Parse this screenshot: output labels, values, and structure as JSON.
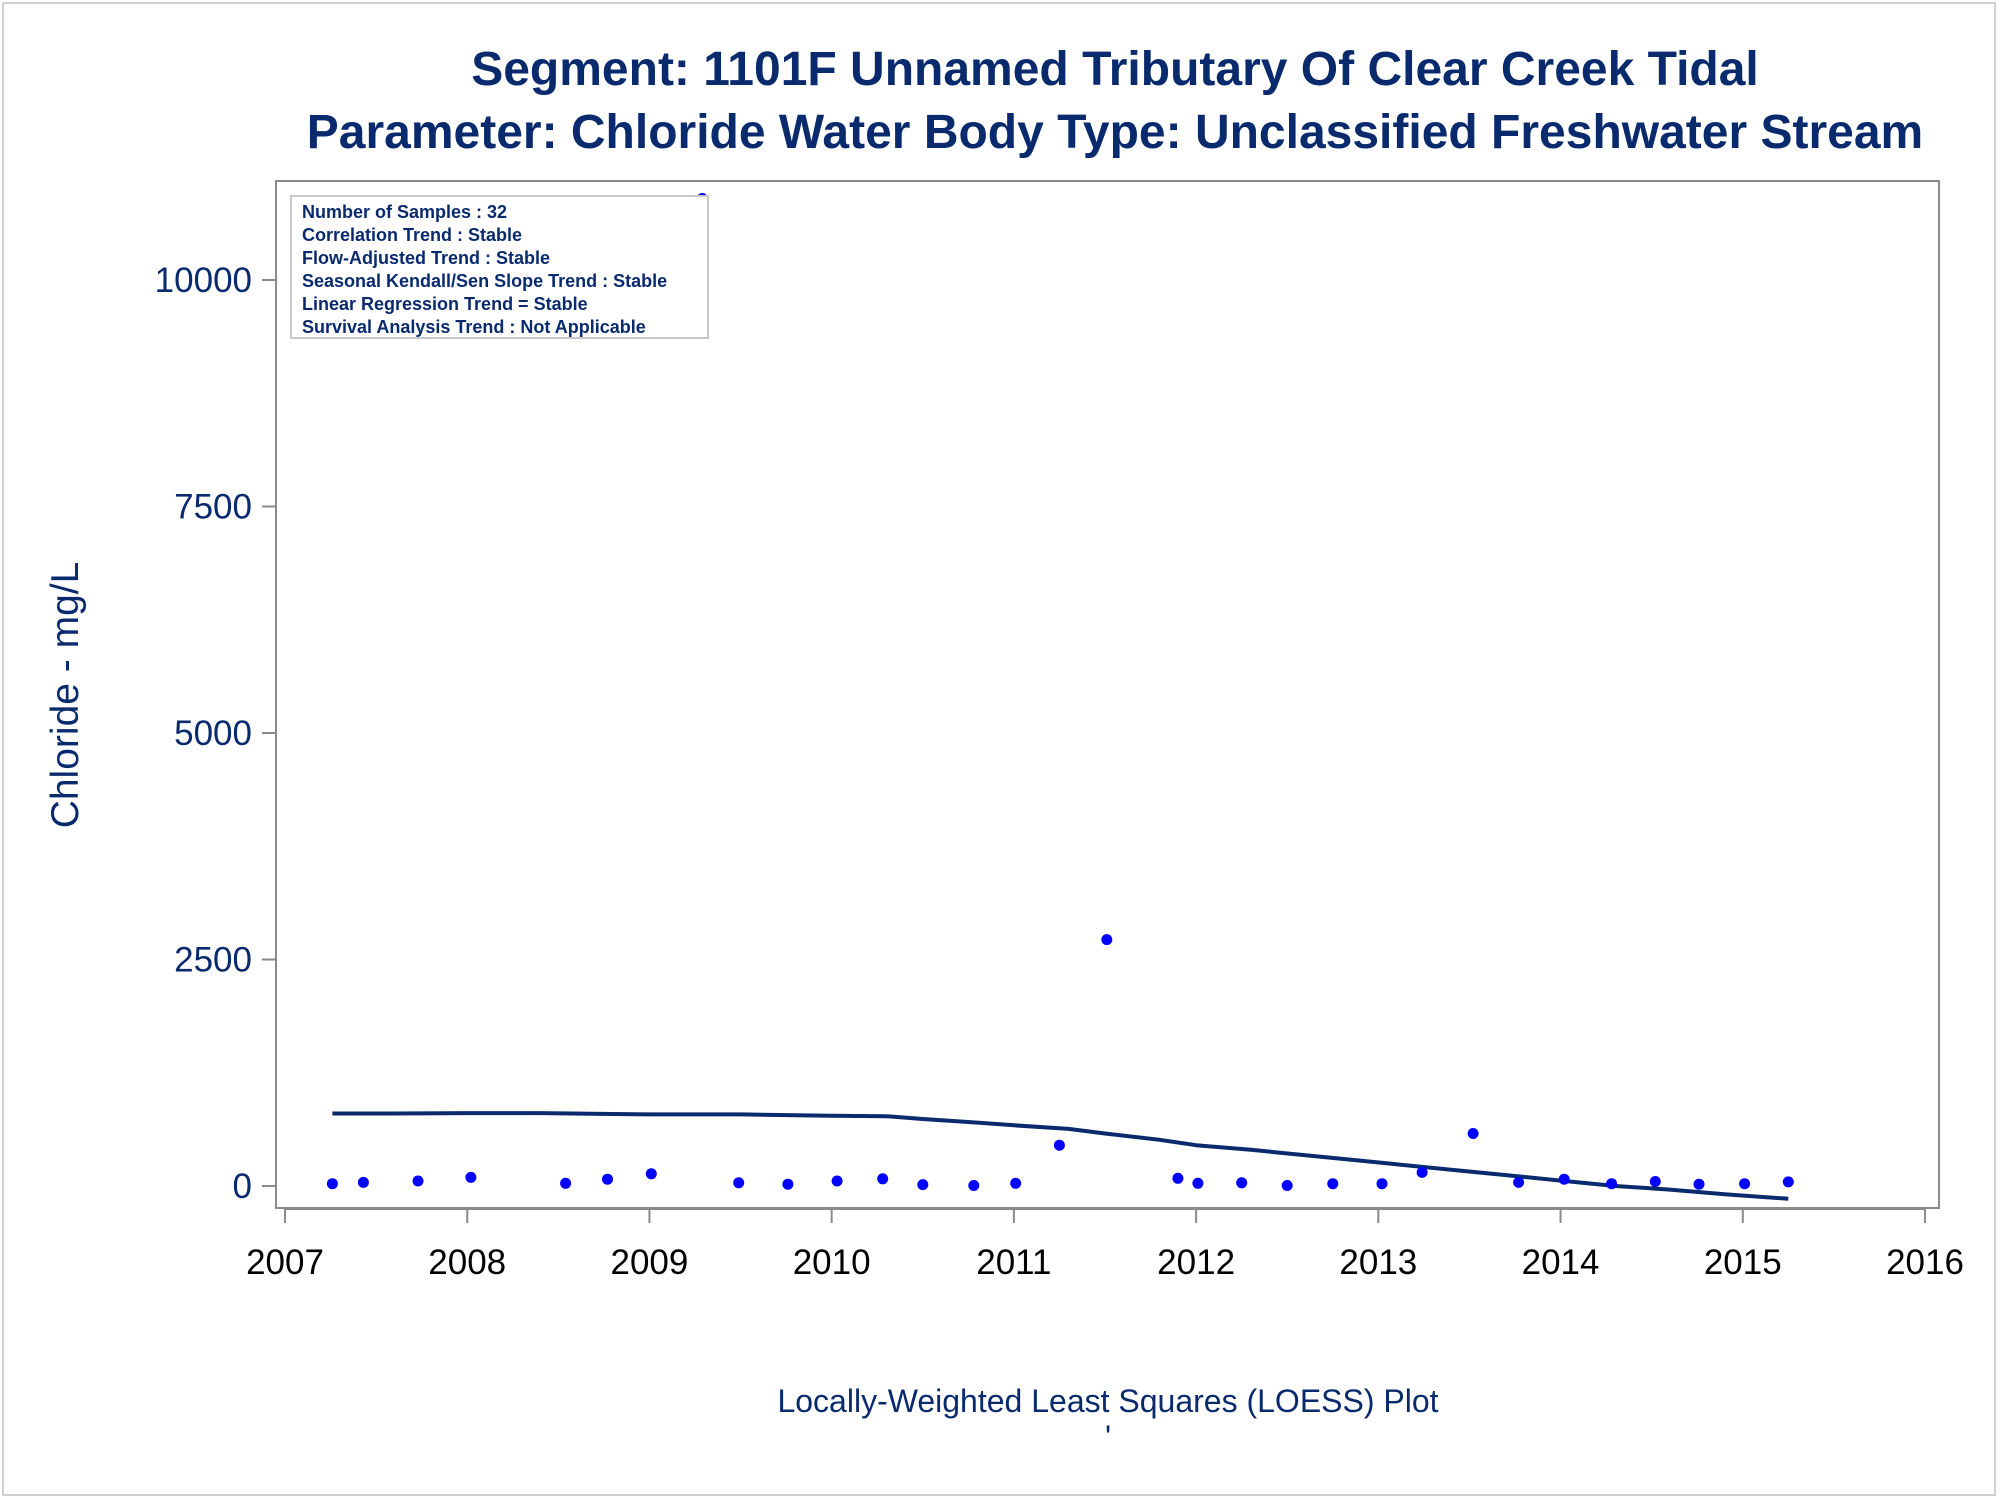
{
  "chart_data": {
    "type": "scatter",
    "title": "Segment: 1101F  Unnamed Tributary Of Clear Creek Tidal",
    "subtitle": "Parameter: Chloride   Water Body Type: Unclassified Freshwater Stream",
    "xlabel": "",
    "ylabel": "Chloride - mg/L",
    "footnote": "Locally-Weighted Least Squares (LOESS) Plot",
    "footnote_mark": "'",
    "xlim": [
      2007,
      2016
    ],
    "ylim": [
      -250,
      11100
    ],
    "x_ticks": [
      2007,
      2008,
      2009,
      2010,
      2011,
      2012,
      2013,
      2014,
      2015,
      2016
    ],
    "y_ticks": [
      0,
      2500,
      5000,
      7500,
      10000
    ],
    "grid": false,
    "legend_position": "top-left",
    "stats_box": [
      "Number of Samples : 32",
      "Correlation Trend : Stable",
      "Flow-Adjusted Trend : Stable",
      "Seasonal Kendall/Sen Slope Trend : Stable",
      "Linear Regression Trend = Stable",
      "Survival Analysis Trend : Not Applicable"
    ],
    "series": [
      {
        "kind": "points",
        "color": "#0000ff",
        "x": [
          2007.26,
          2007.43,
          2007.73,
          2008.02,
          2008.54,
          2008.77,
          2009.01,
          2009.29,
          2009.49,
          2009.76,
          2010.03,
          2010.28,
          2010.5,
          2010.78,
          2011.01,
          2011.25,
          2011.51,
          2011.9,
          2012.01,
          2012.25,
          2012.5,
          2012.75,
          2013.02,
          2013.24,
          2013.52,
          2013.77,
          2014.02,
          2014.28,
          2014.52,
          2014.76,
          2015.01,
          2015.25
        ],
        "y": [
          25,
          40,
          55,
          95,
          30,
          75,
          135,
          10900,
          35,
          20,
          55,
          80,
          15,
          5,
          30,
          450,
          2720,
          85,
          30,
          35,
          5,
          25,
          25,
          150,
          580,
          40,
          75,
          25,
          50,
          20,
          25,
          45
        ]
      },
      {
        "kind": "line",
        "color": "#0a2a6e",
        "x": [
          2007.26,
          2007.6,
          2008.0,
          2008.4,
          2008.8,
          2009.0,
          2009.5,
          2009.8,
          2010.0,
          2010.3,
          2010.5,
          2010.8,
          2011.0,
          2011.3,
          2011.5,
          2011.8,
          2012.0,
          2012.3,
          2012.6,
          2012.9,
          2013.1,
          2013.4,
          2013.7,
          2014.0,
          2014.3,
          2014.6,
          2014.9,
          2015.1,
          2015.25
        ],
        "y": [
          800,
          800,
          805,
          805,
          795,
          790,
          790,
          780,
          775,
          770,
          740,
          700,
          670,
          630,
          580,
          510,
          450,
          400,
          340,
          280,
          240,
          180,
          120,
          60,
          0,
          -40,
          -90,
          -120,
          -140
        ]
      }
    ]
  }
}
